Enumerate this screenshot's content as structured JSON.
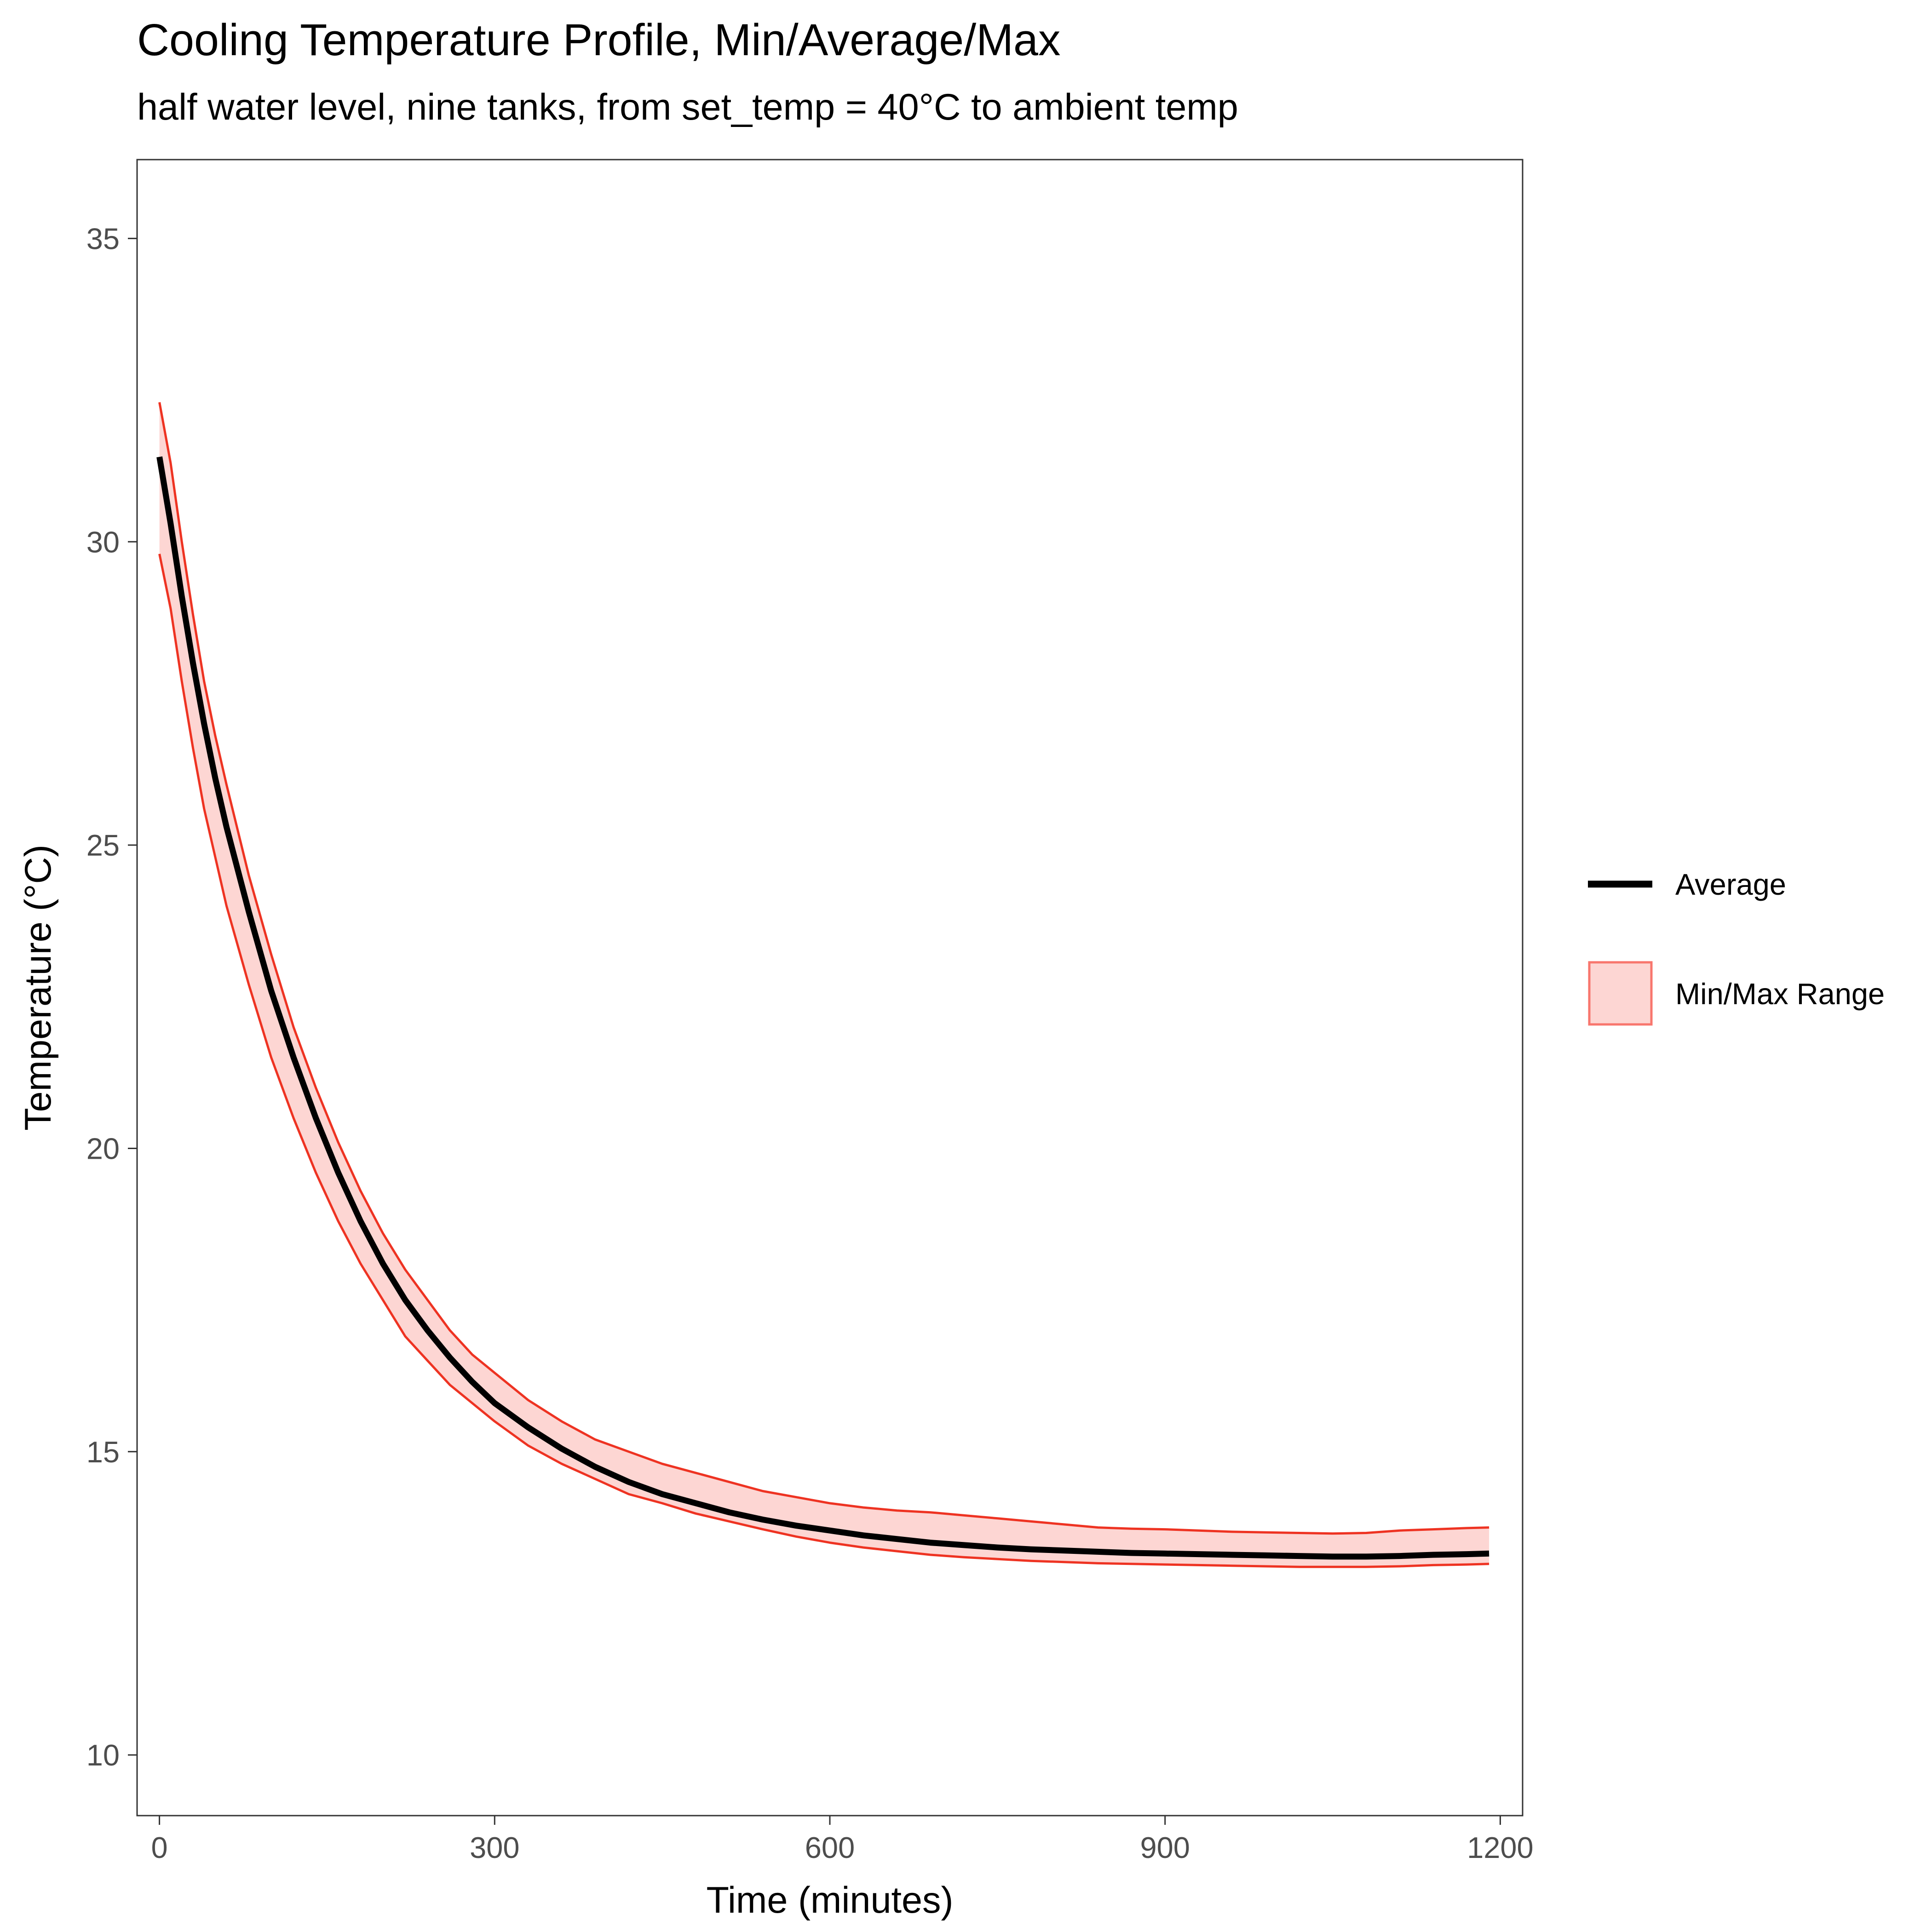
{
  "chart_data": {
    "type": "line",
    "title": "Cooling Temperature Profile, Min/Average/Max",
    "subtitle": "half water level, nine tanks, from set_temp = 40°C to ambient temp",
    "xlabel": "Time (minutes)",
    "ylabel": "Temperature (°C)",
    "xlim": [
      -20,
      1220
    ],
    "ylim": [
      9.0,
      36.3
    ],
    "xticks": [
      0,
      300,
      600,
      900,
      1200
    ],
    "yticks": [
      10,
      15,
      20,
      25,
      30,
      35
    ],
    "grid": false,
    "legend_position": "right",
    "legend": [
      {
        "label": "Average",
        "kind": "line",
        "color": "#000000"
      },
      {
        "label": "Min/Max Range",
        "kind": "ribbon",
        "fill": "#f8766d",
        "stroke": "#ee3322"
      }
    ],
    "x": [
      0,
      10,
      20,
      30,
      40,
      50,
      60,
      80,
      100,
      120,
      140,
      160,
      180,
      200,
      220,
      240,
      260,
      280,
      300,
      330,
      360,
      390,
      420,
      450,
      480,
      510,
      540,
      570,
      600,
      630,
      660,
      690,
      720,
      750,
      780,
      810,
      840,
      870,
      900,
      930,
      960,
      990,
      1020,
      1050,
      1080,
      1110,
      1140,
      1170,
      1190
    ],
    "series": [
      {
        "name": "Average",
        "values": [
          31.4,
          30.3,
          29.1,
          28.0,
          27.0,
          26.1,
          25.3,
          23.9,
          22.6,
          21.5,
          20.5,
          19.6,
          18.8,
          18.1,
          17.5,
          17.0,
          16.55,
          16.15,
          15.8,
          15.4,
          15.05,
          14.75,
          14.5,
          14.3,
          14.15,
          14.0,
          13.88,
          13.78,
          13.7,
          13.62,
          13.56,
          13.5,
          13.46,
          13.42,
          13.39,
          13.37,
          13.35,
          13.33,
          13.32,
          13.31,
          13.3,
          13.29,
          13.28,
          13.27,
          13.27,
          13.28,
          13.3,
          13.31,
          13.32
        ]
      },
      {
        "name": "Max",
        "values": [
          32.3,
          31.3,
          30.0,
          28.8,
          27.7,
          26.8,
          26.0,
          24.5,
          23.2,
          22.0,
          21.0,
          20.1,
          19.3,
          18.6,
          18.0,
          17.5,
          17.0,
          16.6,
          16.3,
          15.85,
          15.5,
          15.2,
          15.0,
          14.8,
          14.65,
          14.5,
          14.35,
          14.25,
          14.15,
          14.08,
          14.03,
          14.0,
          13.95,
          13.9,
          13.85,
          13.8,
          13.75,
          13.73,
          13.72,
          13.7,
          13.68,
          13.67,
          13.66,
          13.65,
          13.66,
          13.7,
          13.72,
          13.74,
          13.75
        ]
      },
      {
        "name": "Min",
        "values": [
          29.8,
          28.9,
          27.7,
          26.6,
          25.6,
          24.8,
          24.0,
          22.7,
          21.5,
          20.5,
          19.6,
          18.8,
          18.1,
          17.5,
          16.9,
          16.5,
          16.1,
          15.8,
          15.5,
          15.1,
          14.8,
          14.55,
          14.3,
          14.15,
          13.98,
          13.85,
          13.72,
          13.6,
          13.5,
          13.42,
          13.36,
          13.3,
          13.26,
          13.23,
          13.2,
          13.18,
          13.16,
          13.15,
          13.14,
          13.13,
          13.12,
          13.11,
          13.1,
          13.1,
          13.1,
          13.11,
          13.13,
          13.14,
          13.15
        ]
      }
    ]
  }
}
